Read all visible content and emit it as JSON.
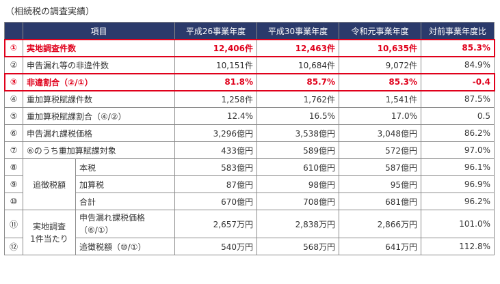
{
  "caption": "（相続税の調査実績）",
  "headers": {
    "item": "項目",
    "y1": "平成26事業年度",
    "y2": "平成30事業年度",
    "y3": "令和元事業年度",
    "ratio": "対前事業年度比"
  },
  "rows": [
    {
      "num": "①",
      "label": "実地調査件数",
      "y1": "12,406件",
      "y2": "12,463件",
      "y3": "10,635件",
      "ratio": "85.3%"
    },
    {
      "num": "②",
      "label": "申告漏れ等の非違件数",
      "y1": "10,151件",
      "y2": "10,684件",
      "y3": "9,072件",
      "ratio": "84.9%"
    },
    {
      "num": "③",
      "label": "非違割合（②/①）",
      "y1": "81.8%",
      "y2": "85.7%",
      "y3": "85.3%",
      "ratio": "-0.4"
    },
    {
      "num": "④",
      "label": "重加算税賦課件数",
      "y1": "1,258件",
      "y2": "1,762件",
      "y3": "1,541件",
      "ratio": "87.5%"
    },
    {
      "num": "⑤",
      "label": "重加算税賦課割合（④/②）",
      "y1": "12.4%",
      "y2": "16.5%",
      "y3": "17.0%",
      "ratio": "0.5"
    },
    {
      "num": "⑥",
      "label": "申告漏れ課税価格",
      "y1": "3,296億円",
      "y2": "3,538億円",
      "y3": "3,048億円",
      "ratio": "86.2%"
    },
    {
      "num": "⑦",
      "label": "⑥のうち重加算賦課対象",
      "y1": "433億円",
      "y2": "589億円",
      "y3": "572億円",
      "ratio": "97.0%"
    },
    {
      "num": "⑧",
      "group": "追徴税額",
      "sub": "本税",
      "y1": "583億円",
      "y2": "610億円",
      "y3": "587億円",
      "ratio": "96.1%"
    },
    {
      "num": "⑨",
      "sub": "加算税",
      "y1": "87億円",
      "y2": "98億円",
      "y3": "95億円",
      "ratio": "96.9%"
    },
    {
      "num": "⑩",
      "sub": "合計",
      "y1": "670億円",
      "y2": "708億円",
      "y3": "681億円",
      "ratio": "96.2%"
    },
    {
      "num": "⑪",
      "group_line1": "実地調査",
      "group_line2": "1件当たり",
      "sub_line1": "申告漏れ課税価格",
      "sub_line2": "（⑥/①）",
      "y1": "2,657万円",
      "y2": "2,838万円",
      "y3": "2,866万円",
      "ratio": "101.0%"
    },
    {
      "num": "⑫",
      "sub": "追徴税額（⑩/①）",
      "y1": "540万円",
      "y2": "568万円",
      "y3": "641万円",
      "ratio": "112.8%"
    }
  ]
}
